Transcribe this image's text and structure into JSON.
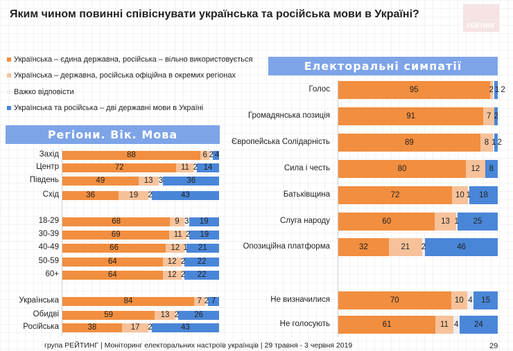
{
  "title": "Яким чином повинні співіснувати українська та російська мови в Україні?",
  "logo_text": "РЕЙТИНГ",
  "colors": {
    "opt1": "#f28e3f",
    "opt2": "#f7c29a",
    "opt3": "#efefef",
    "opt4": "#4a86d8"
  },
  "chart_data": [
    {
      "type": "stacked-bar-horizontal",
      "title": "Регіони. Вік. Мова",
      "series": [
        {
          "name": "Українська – єдина державна, російська – вільно використовується"
        },
        {
          "name": "Українська – державна, російська офіційна в окремих регіонах"
        },
        {
          "name": "Важко відповісти"
        },
        {
          "name": "Українська та російська – дві державні мови в Україні"
        }
      ],
      "categories": [
        "Захід",
        "Центр",
        "Південь",
        "Схід",
        "18-29",
        "30-39",
        "40-49",
        "50-59",
        "60+",
        "Українська",
        "Обидві",
        "Російська"
      ],
      "values": [
        [
          88,
          6,
          2,
          4
        ],
        [
          72,
          11,
          2,
          14
        ],
        [
          49,
          13,
          3,
          36
        ],
        [
          36,
          19,
          2,
          43
        ],
        [
          68,
          9,
          3,
          19
        ],
        [
          69,
          11,
          2,
          19
        ],
        [
          66,
          12,
          1,
          21
        ],
        [
          64,
          12,
          2,
          22
        ],
        [
          64,
          12,
          2,
          22
        ],
        [
          84,
          7,
          2,
          7
        ],
        [
          59,
          13,
          2,
          26
        ],
        [
          38,
          17,
          2,
          43
        ]
      ]
    },
    {
      "type": "stacked-bar-horizontal",
      "title": "Електоральні симпатії",
      "categories": [
        "Голос",
        "Громадянська позиція",
        "Європейська Солідарність",
        "Сила і честь",
        "Батьківщина",
        "Слуга народу",
        "Опозиційна платформа",
        "Не визначилися",
        "Не голосують"
      ],
      "values": [
        [
          95,
          2,
          1,
          2
        ],
        [
          91,
          7,
          0,
          2
        ],
        [
          89,
          8,
          1,
          2
        ],
        [
          80,
          12,
          0,
          8
        ],
        [
          72,
          10,
          1,
          18
        ],
        [
          60,
          13,
          1,
          25
        ],
        [
          32,
          21,
          2,
          46
        ],
        [
          70,
          10,
          4,
          15
        ],
        [
          61,
          11,
          4,
          24
        ]
      ]
    }
  ],
  "footer": "група РЕЙТИНГ | Моніторинг електоральних настроїв українців  | 29 травня - 3 червня 2019",
  "page_number": "29"
}
